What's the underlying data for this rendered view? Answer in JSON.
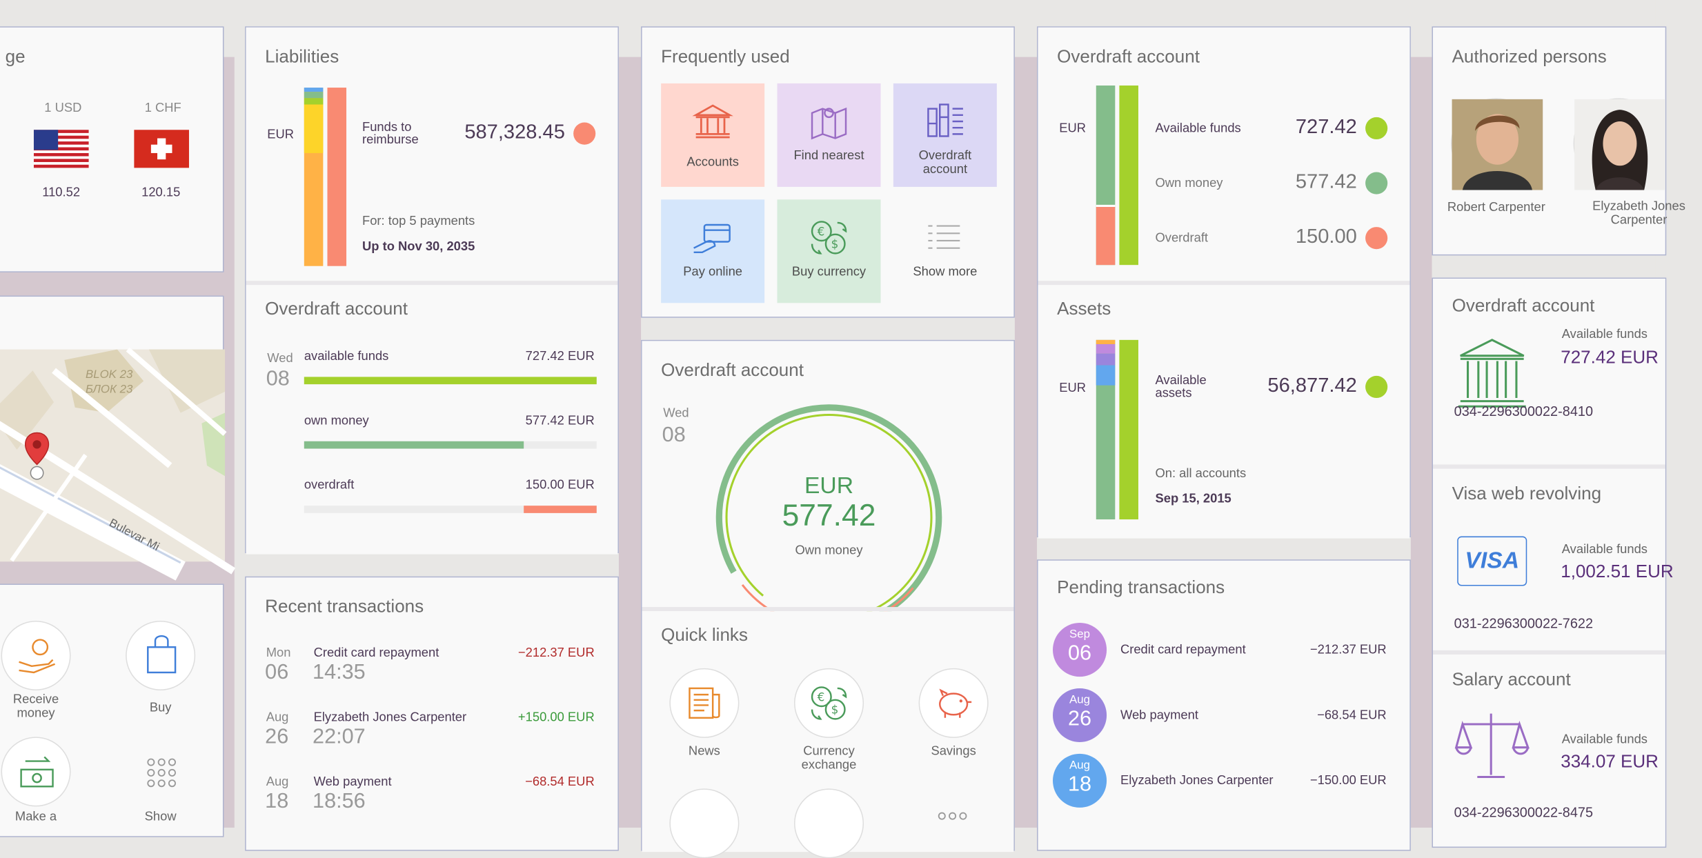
{
  "exchange": {
    "title": "ge",
    "usd_label": "1 USD",
    "chf_label": "1 CHF",
    "usd_rate": "110.52",
    "chf_rate": "120.15"
  },
  "map": {
    "label1": "BLOK 23",
    "label2": "БЛОК 23",
    "road": "Bulevar Mi"
  },
  "actions": {
    "receive": "Receive money",
    "buy": "Buy",
    "make": "Make a",
    "show": "Show"
  },
  "liabilities": {
    "title": "Liabilities",
    "currency": "EUR",
    "label": "Funds to reimburse",
    "amount": "587,328.45",
    "note": "For: top 5 payments",
    "date": "Up to Nov 30, 2035",
    "dot_color": "#f98a72"
  },
  "overdraft_bars": {
    "title": "Overdraft account",
    "weekday": "Wed",
    "day": "08",
    "rows": [
      {
        "label": "available funds",
        "value": "727.42 EUR",
        "fill": 1.0,
        "color": "#a4d12c"
      },
      {
        "label": "own money",
        "value": "577.42 EUR",
        "fill": 0.75,
        "color": "#84bd8b"
      },
      {
        "label": "overdraft",
        "value": "150.00 EUR",
        "fill": 0.25,
        "color": "#f98a72"
      }
    ]
  },
  "recent": {
    "title": "Recent transactions",
    "items": [
      {
        "weekday": "Mon",
        "day": "06",
        "time": "14:35",
        "desc": "Credit card repayment",
        "amount": "−212.37 EUR"
      },
      {
        "weekday": "Aug",
        "day": "26",
        "time": "22:07",
        "desc": "Elyzabeth Jones Carpenter",
        "amount": "+150.00 EUR"
      },
      {
        "weekday": "Aug",
        "day": "18",
        "time": "18:56",
        "desc": "Web payment",
        "amount": "−68.54 EUR"
      }
    ]
  },
  "frequent": {
    "title": "Frequently used",
    "tiles": [
      {
        "label": "Accounts",
        "icon": "bank-icon",
        "color": "#ffd7cf"
      },
      {
        "label": "Find nearest",
        "icon": "map-pin-icon",
        "color": "#e9d9f3"
      },
      {
        "label": "Overdraft account",
        "icon": "overdraft-icon",
        "color": "#dcd8f5"
      },
      {
        "label": "Pay online",
        "icon": "card-hand-icon",
        "color": "#d5e6fb"
      },
      {
        "label": "Buy currency",
        "icon": "currency-exchange-icon",
        "color": "#d7ecdc"
      },
      {
        "label": "Show more",
        "icon": "list-icon",
        "color": "#f9f9f9"
      }
    ]
  },
  "overdraft_gauge": {
    "title": "Overdraft account",
    "weekday": "Wed",
    "day": "08",
    "currency": "EUR",
    "amount": "577.42",
    "caption": "Own money"
  },
  "quick": {
    "title": "Quick links",
    "items": [
      {
        "label": "News",
        "icon": "news-icon"
      },
      {
        "label": "Currency exchange",
        "icon": "currency-exchange-icon"
      },
      {
        "label": "Savings",
        "icon": "piggy-bank-icon"
      }
    ]
  },
  "overdraft_stack": {
    "title": "Overdraft account",
    "currency": "EUR",
    "rows": [
      {
        "label": "Available funds",
        "value": "727.42",
        "color": "#a4d12c"
      },
      {
        "label": "Own money",
        "value": "577.42",
        "color": "#84bd8b"
      },
      {
        "label": "Overdraft",
        "value": "150.00",
        "color": "#f98a72"
      }
    ]
  },
  "assets": {
    "title": "Assets",
    "currency": "EUR",
    "label": "Available assets",
    "amount": "56,877.42",
    "note": "On: all accounts",
    "date": "Sep 15, 2015",
    "dot_color": "#a4d12c"
  },
  "pending": {
    "title": "Pending transactions",
    "items": [
      {
        "month": "Sep",
        "day": "06",
        "desc": "Credit card repayment",
        "amount": "−212.37 EUR",
        "color": "#c08ade"
      },
      {
        "month": "Aug",
        "day": "26",
        "desc": "Web payment",
        "amount": "−68.54 EUR",
        "color": "#9a85dd"
      },
      {
        "month": "Aug",
        "day": "18",
        "desc": "Elyzabeth Jones Carpenter",
        "amount": "−150.00 EUR",
        "color": "#62a7ee"
      }
    ]
  },
  "authorized": {
    "title": "Authorized persons",
    "persons": [
      {
        "name": "Robert Carpenter"
      },
      {
        "name": "Elyzabeth Jones Carpenter"
      }
    ]
  },
  "accounts": [
    {
      "title": "Overdraft account",
      "label": "Available funds",
      "amount": "727.42 EUR",
      "number": "034-2296300022-8410",
      "icon": "bank-icon"
    },
    {
      "title": "Visa web revolving",
      "label": "Available funds",
      "amount": "1,002.51 EUR",
      "number": "031-2296300022-7622",
      "icon": "visa-icon",
      "brand": "VISA"
    },
    {
      "title": "Salary account",
      "label": "Available funds",
      "amount": "334.07 EUR",
      "number": "034-2296300022-8475",
      "icon": "scales-icon"
    }
  ]
}
